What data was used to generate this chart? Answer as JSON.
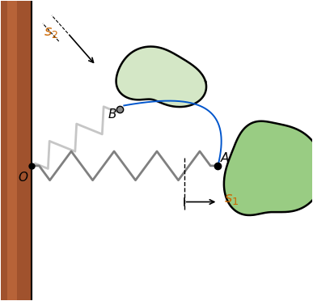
{
  "bg_color": "#ffffff",
  "wall_color": "#A0522D",
  "wall_color_light": "#C87040",
  "spring_color_dark": "#808080",
  "spring_color_light": "#C0C0C0",
  "body_A_color": "#90c878",
  "body_B_color": "#b8d8a0",
  "blue_arc_color": "#0055CC",
  "label_color_s": "#CC6600",
  "O_label": "O",
  "A_label": "A",
  "B_label": "B",
  "s1_label": "s_1",
  "s2_label": "s_2"
}
